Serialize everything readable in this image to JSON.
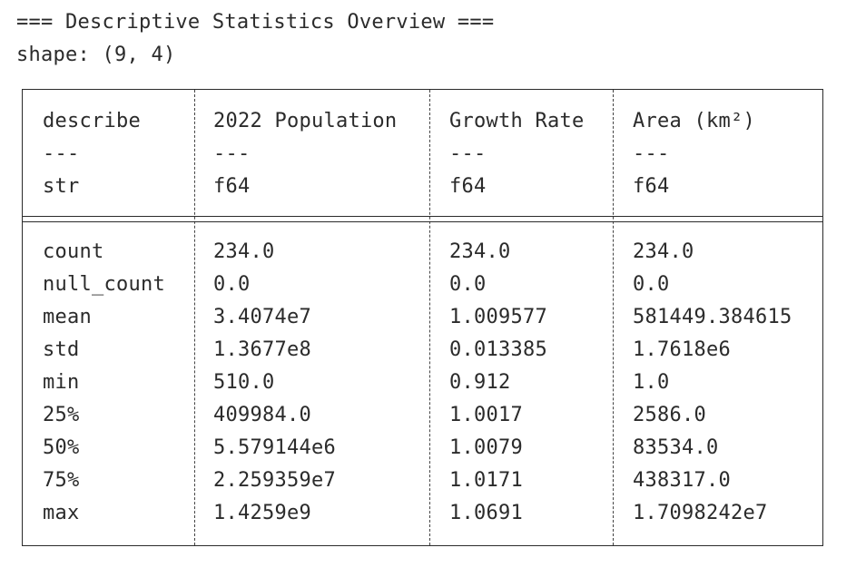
{
  "title": "=== Descriptive Statistics Overview ===",
  "shape": "shape: (9, 4)",
  "table": {
    "columns": [
      {
        "name": "describe",
        "sep": "---",
        "dtype": "str"
      },
      {
        "name": "2022 Population",
        "sep": "---",
        "dtype": "f64"
      },
      {
        "name": "Growth Rate",
        "sep": "---",
        "dtype": "f64"
      },
      {
        "name": "Area (km²)",
        "sep": "---",
        "dtype": "f64"
      }
    ],
    "rows": [
      [
        "count",
        "234.0",
        "234.0",
        "234.0"
      ],
      [
        "null_count",
        "0.0",
        "0.0",
        "0.0"
      ],
      [
        "mean",
        "3.4074e7",
        "1.009577",
        "581449.384615"
      ],
      [
        "std",
        "1.3677e8",
        "0.013385",
        "1.7618e6"
      ],
      [
        "min",
        "510.0",
        "0.912",
        "1.0"
      ],
      [
        "25%",
        "409984.0",
        "1.0017",
        "2586.0"
      ],
      [
        "50%",
        "5.579144e6",
        "1.0079",
        "83534.0"
      ],
      [
        "75%",
        "2.259359e7",
        "1.0171",
        "438317.0"
      ],
      [
        "max",
        "1.4259e9",
        "1.0691",
        "1.7098242e7"
      ]
    ]
  }
}
